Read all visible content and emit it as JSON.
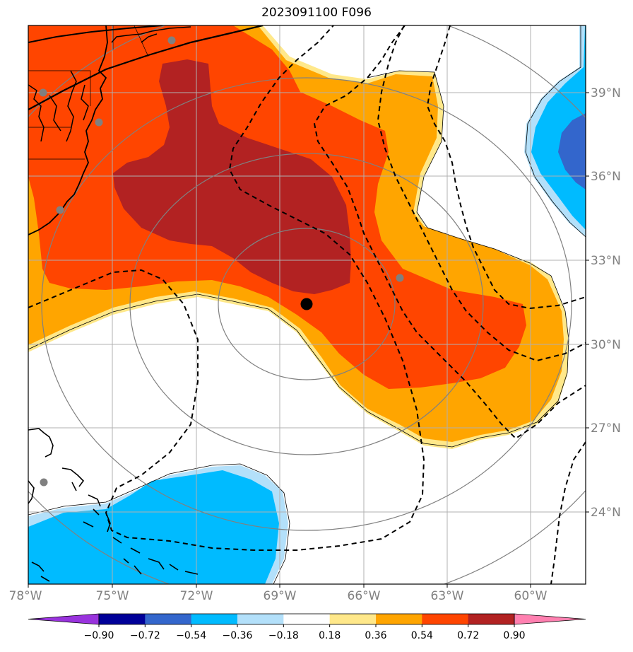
{
  "title": "2023091100 F096",
  "lon_labels": [
    "78°W",
    "75°W",
    "72°W",
    "69°W",
    "66°W",
    "63°W",
    "60°W"
  ],
  "lat_labels": [
    "39°N",
    "36°N",
    "33°N",
    "30°N",
    "27°N",
    "24°N"
  ],
  "colorbar": {
    "ticks": [
      "−0.90",
      "−0.72",
      "−0.54",
      "−0.36",
      "−0.18",
      "0.18",
      "0.36",
      "0.54",
      "0.72",
      "0.90"
    ],
    "colors": [
      "#9933dd",
      "#000099",
      "#3366cc",
      "#00bbff",
      "#b3e0fa",
      "#ffffff",
      "#ffe88a",
      "#ffa500",
      "#ff4500",
      "#b22222",
      "#ff80b0"
    ]
  },
  "colors": {
    "grid": "#b0b0b0",
    "range_rings": "#808080",
    "contours": "#000000",
    "storm_center": "#000000",
    "stations": "#808080"
  }
}
